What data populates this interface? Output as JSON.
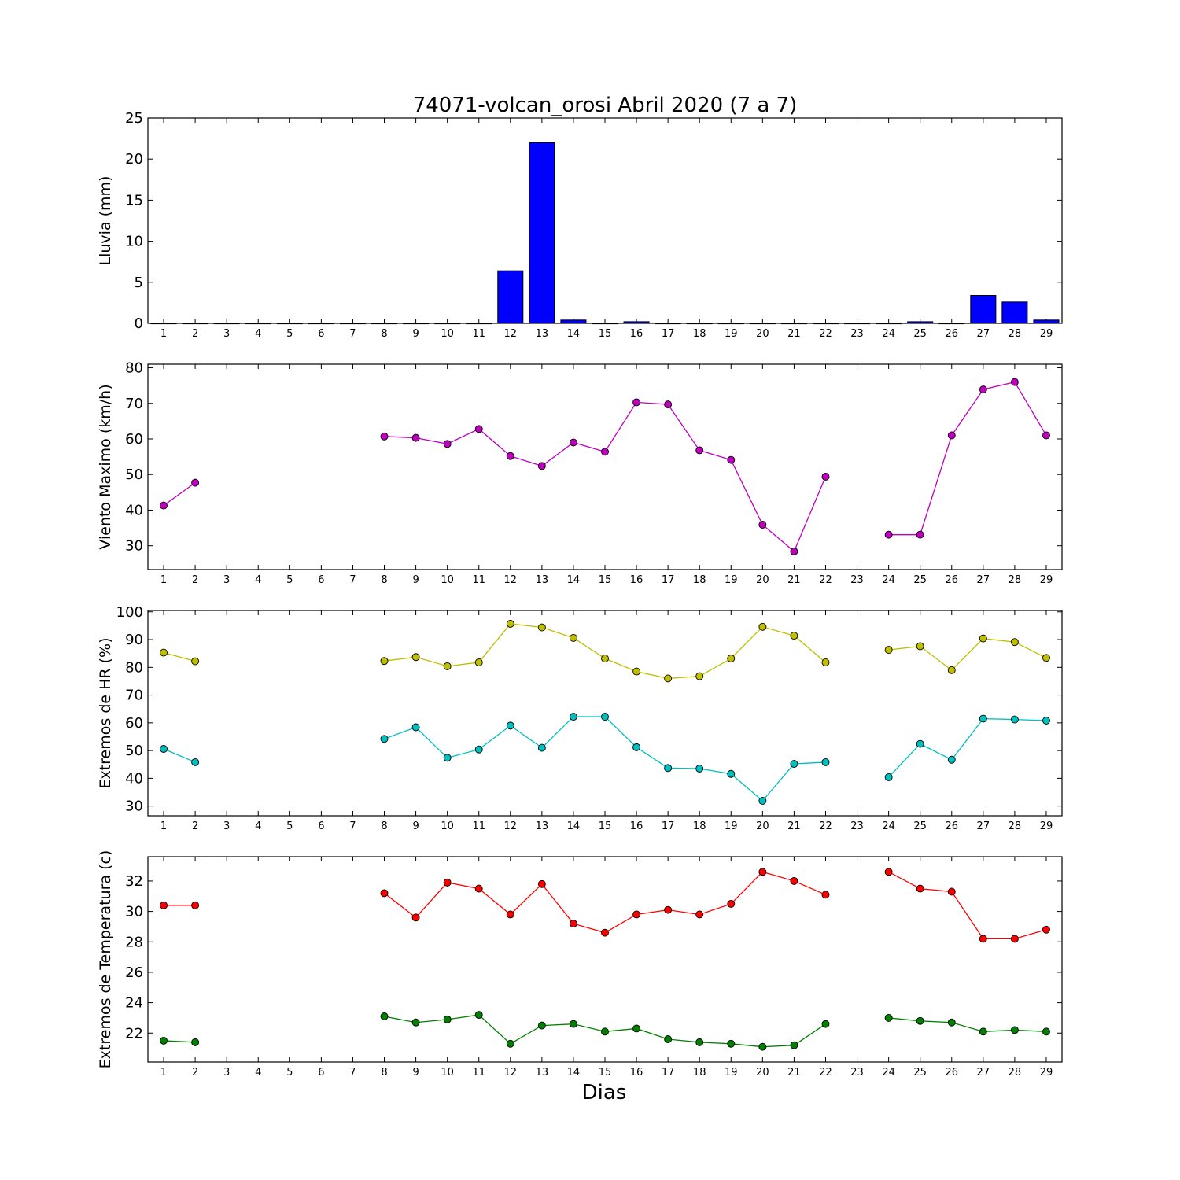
{
  "figure": {
    "title": "74071-volcan_orosi Abril 2020  (7 a 7)",
    "xlabel": "Dias"
  },
  "chart_data": [
    {
      "type": "bar",
      "ylabel": "Lluvia (mm)",
      "ylim": [
        0,
        25
      ],
      "yticks": [
        0,
        5,
        10,
        15,
        20,
        25
      ],
      "categories": [
        1,
        2,
        3,
        4,
        5,
        6,
        7,
        8,
        9,
        10,
        11,
        12,
        13,
        14,
        15,
        16,
        17,
        18,
        19,
        20,
        21,
        22,
        23,
        24,
        25,
        26,
        27,
        28,
        29
      ],
      "values": [
        0,
        0,
        0,
        0,
        0,
        0,
        0,
        0,
        0,
        0,
        0,
        6.4,
        22.0,
        0.4,
        0,
        0.2,
        0,
        0,
        0,
        0,
        0,
        0,
        0,
        0,
        0.2,
        0,
        3.4,
        2.6,
        0.4
      ],
      "color": "#0000ff"
    },
    {
      "type": "line",
      "ylabel": "Viento Maximo (km/h)",
      "ylim": [
        23.3,
        81
      ],
      "yticks": [
        30,
        40,
        50,
        60,
        70,
        80
      ],
      "categories": [
        1,
        2,
        3,
        4,
        5,
        6,
        7,
        8,
        9,
        10,
        11,
        12,
        13,
        14,
        15,
        16,
        17,
        18,
        19,
        20,
        21,
        22,
        23,
        24,
        25,
        26,
        27,
        28,
        29
      ],
      "series": [
        {
          "color": "#bf00bf",
          "values": [
            41.3,
            47.7,
            null,
            null,
            null,
            null,
            null,
            60.7,
            60.3,
            58.6,
            62.8,
            55.2,
            52.4,
            59.0,
            56.4,
            70.3,
            69.7,
            56.8,
            54.1,
            35.9,
            28.4,
            49.4,
            null,
            33.1,
            33.1,
            61.0,
            73.9,
            76.0,
            61.0
          ]
        }
      ]
    },
    {
      "type": "line",
      "ylabel": "Extremos de HR (%)",
      "ylim": [
        26.5,
        100.5
      ],
      "yticks": [
        30,
        40,
        50,
        60,
        70,
        80,
        90,
        100
      ],
      "categories": [
        1,
        2,
        3,
        4,
        5,
        6,
        7,
        8,
        9,
        10,
        11,
        12,
        13,
        14,
        15,
        16,
        17,
        18,
        19,
        20,
        21,
        22,
        23,
        24,
        25,
        26,
        27,
        28,
        29
      ],
      "series": [
        {
          "color": "#bfbf00",
          "values": [
            85.3,
            82.2,
            null,
            null,
            null,
            null,
            null,
            82.3,
            83.7,
            80.4,
            81.8,
            95.7,
            94.4,
            90.6,
            83.2,
            78.5,
            76.0,
            76.8,
            83.2,
            94.6,
            91.4,
            81.8,
            null,
            86.3,
            87.6,
            79.0,
            90.4,
            89.1,
            83.4
          ]
        },
        {
          "color": "#00bfbf",
          "values": [
            50.6,
            45.8,
            null,
            null,
            null,
            null,
            null,
            54.2,
            58.4,
            47.4,
            50.4,
            59.0,
            51.0,
            62.2,
            62.2,
            51.2,
            43.7,
            43.5,
            41.6,
            31.9,
            45.2,
            45.8,
            null,
            40.4,
            52.4,
            46.7,
            61.5,
            61.2,
            60.8
          ]
        }
      ]
    },
    {
      "type": "line",
      "ylabel": "Extremos de Temperatura (c)",
      "ylim": [
        20.1,
        33.6
      ],
      "yticks": [
        22,
        24,
        26,
        28,
        30,
        32
      ],
      "categories": [
        1,
        2,
        3,
        4,
        5,
        6,
        7,
        8,
        9,
        10,
        11,
        12,
        13,
        14,
        15,
        16,
        17,
        18,
        19,
        20,
        21,
        22,
        23,
        24,
        25,
        26,
        27,
        28,
        29
      ],
      "series": [
        {
          "color": "#ff0000",
          "values": [
            30.4,
            30.4,
            null,
            null,
            null,
            null,
            null,
            31.2,
            29.6,
            31.9,
            31.5,
            29.8,
            31.8,
            29.2,
            28.6,
            29.8,
            30.1,
            29.8,
            30.5,
            32.6,
            32.0,
            31.1,
            null,
            32.6,
            31.5,
            31.3,
            28.2,
            28.2,
            28.8
          ]
        },
        {
          "color": "#008000",
          "values": [
            21.5,
            21.4,
            null,
            null,
            null,
            null,
            null,
            23.1,
            22.7,
            22.9,
            23.2,
            21.3,
            22.5,
            22.6,
            22.1,
            22.3,
            21.6,
            21.4,
            21.3,
            21.1,
            21.2,
            22.6,
            null,
            23.0,
            22.8,
            22.7,
            22.1,
            22.2,
            22.1
          ]
        }
      ]
    }
  ]
}
